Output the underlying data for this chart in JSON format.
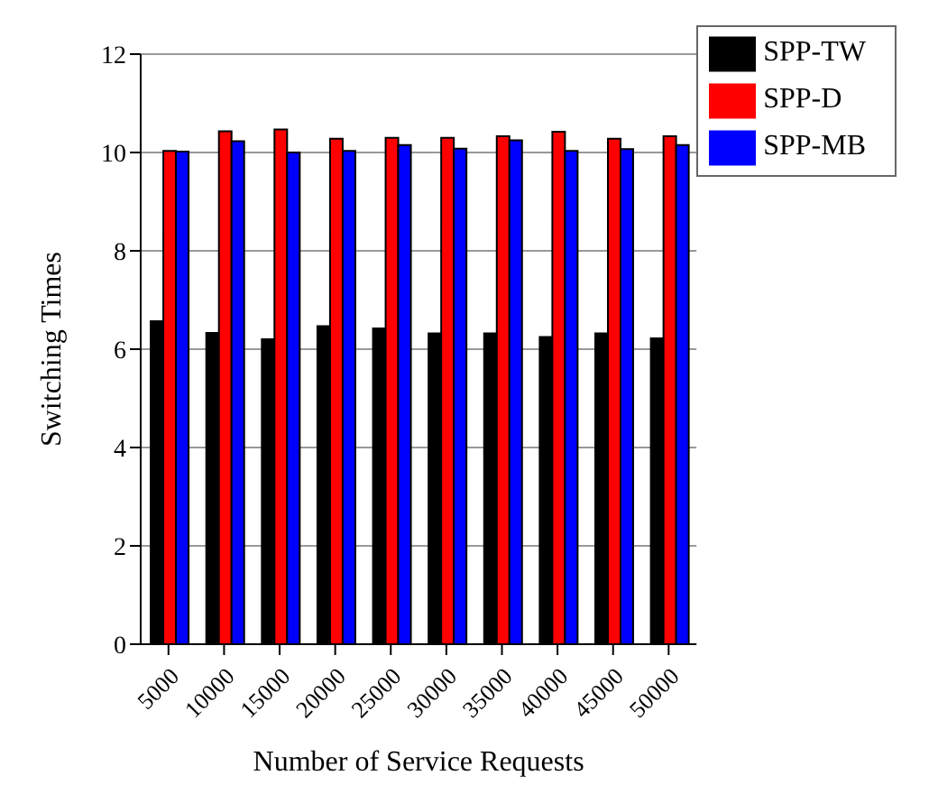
{
  "chart_data": {
    "type": "bar",
    "xlabel": "Number of Service Requests",
    "ylabel": "Switching Times",
    "categories": [
      "5000",
      "10000",
      "15000",
      "20000",
      "25000",
      "30000",
      "35000",
      "40000",
      "45000",
      "50000"
    ],
    "series": [
      {
        "name": "SPP-TW",
        "color": "#000000",
        "values": [
          6.57,
          6.33,
          6.2,
          6.47,
          6.42,
          6.32,
          6.32,
          6.25,
          6.32,
          6.22
        ]
      },
      {
        "name": "SPP-D",
        "color": "#ff0000",
        "values": [
          10.03,
          10.43,
          10.47,
          10.28,
          10.3,
          10.3,
          10.33,
          10.42,
          10.28,
          10.33
        ]
      },
      {
        "name": "SPP-MB",
        "color": "#0000ff",
        "values": [
          10.02,
          10.23,
          10.0,
          10.03,
          10.15,
          10.08,
          10.25,
          10.03,
          10.07,
          10.15
        ]
      }
    ],
    "ylim": [
      0,
      12
    ],
    "yticks": [
      0,
      2,
      4,
      6,
      8,
      10,
      12
    ],
    "grid": "y",
    "legend": "top right"
  }
}
